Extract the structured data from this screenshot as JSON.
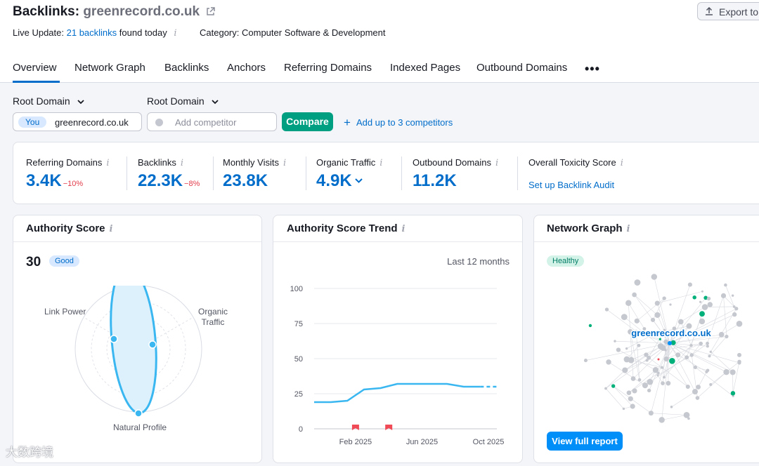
{
  "header": {
    "title_prefix": "Backlinks:",
    "domain": "greenrecord.co.uk",
    "export_label": "Export to",
    "live_prefix": "Live Update:",
    "live_link": "21 backlinks",
    "live_suffix": "found today",
    "category_label": "Category:",
    "category_value": "Computer Software & Development"
  },
  "tabs": [
    "Overview",
    "Network Graph",
    "Backlinks",
    "Anchors",
    "Referring Domains",
    "Indexed Pages",
    "Outbound Domains"
  ],
  "filters": {
    "dropdown1": "Root Domain",
    "dropdown2": "Root Domain",
    "you_badge": "You",
    "your_domain": "greenrecord.co.uk",
    "competitor_placeholder": "Add competitor",
    "compare_label": "Compare",
    "add_competitors": "Add up to 3 competitors"
  },
  "metrics": {
    "referring_domains": {
      "label": "Referring Domains",
      "value": "3.4K",
      "change": "−10%"
    },
    "backlinks": {
      "label": "Backlinks",
      "value": "22.3K",
      "change": "−8%"
    },
    "monthly_visits": {
      "label": "Monthly Visits",
      "value": "23.8K"
    },
    "organic_traffic": {
      "label": "Organic Traffic",
      "value": "4.9K"
    },
    "outbound_domains": {
      "label": "Outbound Domains",
      "value": "11.2K"
    },
    "toxicity": {
      "label": "Overall Toxicity Score",
      "link": "Set up Backlink Audit"
    }
  },
  "authority": {
    "title": "Authority Score",
    "score": "30",
    "badge": "Good",
    "labels": {
      "link_power": "Link Power",
      "organic_line1": "Organic",
      "organic_line2": "Traffic",
      "natural": "Natural Profile"
    }
  },
  "trend": {
    "title": "Authority Score Trend",
    "period": "Last 12 months"
  },
  "network": {
    "title": "Network Graph",
    "badge": "Healthy",
    "center_label": "greenrecord.co.uk",
    "button": "View full report"
  },
  "colors": {
    "accent": "#006dca",
    "compare": "#009f81",
    "line": "#3ab7f0",
    "negative": "#e23c4a",
    "node": "#c6c8cf",
    "node_green": "#00b07a"
  },
  "watermark": "大数跨境",
  "chart_data": {
    "type": "line",
    "title": "Authority Score Trend",
    "x": [
      "Nov 2024",
      "Dec 2024",
      "Jan 2025",
      "Feb 2025",
      "Mar 2025",
      "Apr 2025",
      "May 2025",
      "Jun 2025",
      "Jul 2025",
      "Aug 2025",
      "Sep 2025",
      "Oct 2025"
    ],
    "x_tick_labels": [
      "Feb 2025",
      "Jun 2025",
      "Oct 2025"
    ],
    "series": [
      {
        "values": [
          19,
          19,
          20,
          28,
          29,
          32,
          32,
          32,
          32,
          30,
          30,
          30
        ]
      }
    ],
    "ylim": [
      0,
      100
    ],
    "y_ticks": [
      0,
      25,
      50,
      75,
      100
    ],
    "markers_at": [
      "Feb 2025",
      "Apr 2025"
    ],
    "grid": true,
    "legend": "none"
  }
}
